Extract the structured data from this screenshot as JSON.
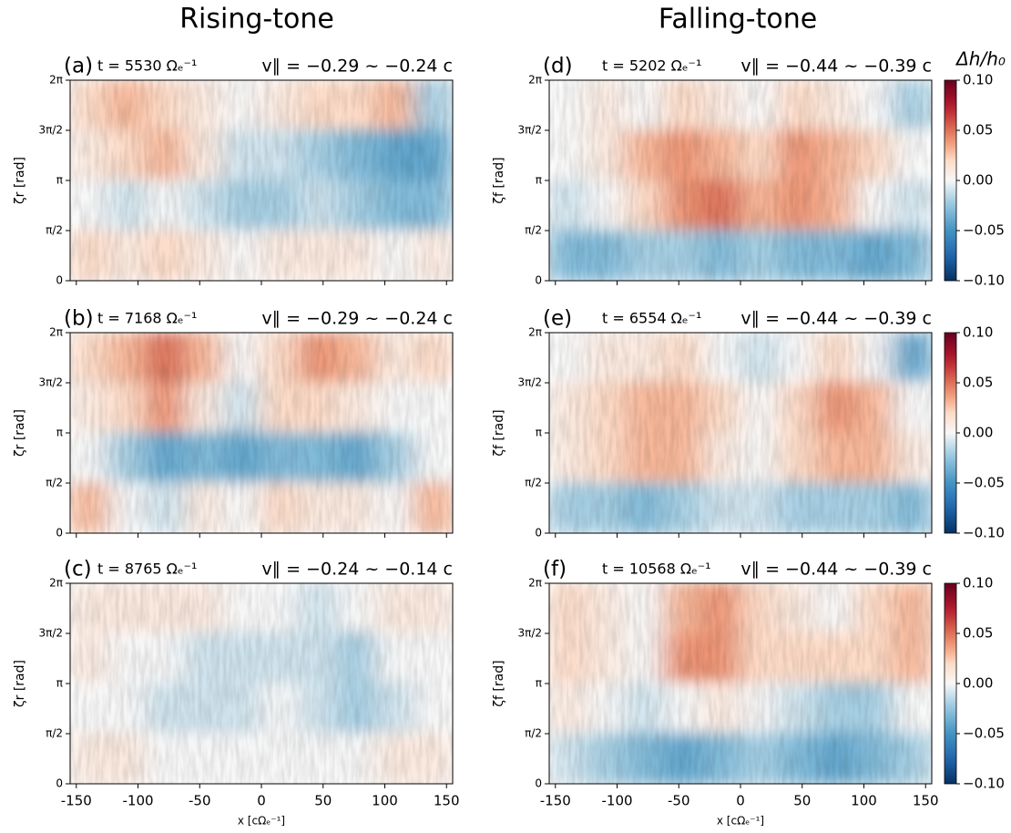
{
  "columns": [
    "Rising-tone",
    "Falling-tone"
  ],
  "chart_data": [
    {
      "type": "heatmap",
      "label": "(a)",
      "time": "t = 5530 Ωₑ⁻¹",
      "vpar": "v∥ = −0.29 ~ −0.24 c",
      "ylabel": "ζr [rad]",
      "xlim": [
        -155,
        155
      ],
      "xticks": [
        -150,
        -100,
        -50,
        0,
        50,
        100,
        150
      ],
      "show_xtick_labels": false,
      "ylim": [
        0,
        6.2832
      ],
      "yticks": [
        0,
        {
          "value": 1.5708,
          "label": "π/2"
        },
        {
          "value": 3.1416,
          "label": "π"
        },
        {
          "value": 4.7124,
          "label": "3π/2"
        },
        {
          "value": 6.2832,
          "label": "2π"
        }
      ],
      "colormap": "RdBu_r",
      "zlim": [
        -0.1,
        0.1
      ],
      "z": [
        [
          0.02,
          0.03,
          0.02,
          0.01,
          0,
          0.01,
          0.02,
          0.02,
          0.03,
          -0.02
        ],
        [
          0.01,
          0.02,
          0.03,
          0.01,
          -0.01,
          -0.01,
          -0.02,
          -0.03,
          -0.04,
          -0.04
        ],
        [
          0,
          -0.01,
          0,
          -0.01,
          -0.02,
          -0.02,
          -0.01,
          -0.02,
          -0.03,
          -0.03
        ],
        [
          0.02,
          0.01,
          0.02,
          0.01,
          0,
          0.01,
          0.01,
          0.01,
          0,
          0.01
        ]
      ]
    },
    {
      "type": "heatmap",
      "label": "(b)",
      "time": "t = 7168 Ωₑ⁻¹",
      "vpar": "v∥ = −0.29 ~ −0.24 c",
      "ylabel": "ζr [rad]",
      "xlim": [
        -155,
        155
      ],
      "xticks": [
        -150,
        -100,
        -50,
        0,
        50,
        100,
        150
      ],
      "show_xtick_labels": false,
      "ylim": [
        0,
        6.2832
      ],
      "yticks": [
        0,
        {
          "value": 1.5708,
          "label": "π/2"
        },
        {
          "value": 3.1416,
          "label": "π"
        },
        {
          "value": 4.7124,
          "label": "3π/2"
        },
        {
          "value": 6.2832,
          "label": "2π"
        }
      ],
      "colormap": "RdBu_r",
      "zlim": [
        -0.1,
        0.1
      ],
      "z": [
        [
          0.02,
          0.03,
          0.05,
          0.03,
          0,
          0.02,
          0.04,
          0.03,
          0.01,
          0.02
        ],
        [
          0.01,
          0.02,
          0.04,
          0.01,
          -0.01,
          0.02,
          0.02,
          0.01,
          0,
          0
        ],
        [
          0,
          -0.02,
          -0.04,
          -0.03,
          -0.04,
          -0.03,
          -0.03,
          -0.04,
          -0.02,
          0
        ],
        [
          0.03,
          0,
          -0.01,
          0.01,
          0,
          0.02,
          0.01,
          0.01,
          0,
          0.03
        ]
      ]
    },
    {
      "type": "heatmap",
      "label": "(c)",
      "time": "t = 8765 Ωₑ⁻¹",
      "vpar": "v∥ = −0.24 ~ −0.14 c",
      "ylabel": "ζr [rad]",
      "xlabel": "x [cΩₑ⁻¹]",
      "xlim": [
        -155,
        155
      ],
      "xticks": [
        -150,
        -100,
        -50,
        0,
        50,
        100,
        150
      ],
      "show_xtick_labels": true,
      "ylim": [
        0,
        6.2832
      ],
      "yticks": [
        0,
        {
          "value": 1.5708,
          "label": "π/2"
        },
        {
          "value": 3.1416,
          "label": "π"
        },
        {
          "value": 4.7124,
          "label": "3π/2"
        },
        {
          "value": 6.2832,
          "label": "2π"
        }
      ],
      "colormap": "RdBu_r",
      "zlim": [
        -0.1,
        0.1
      ],
      "z": [
        [
          0.01,
          0.01,
          0.01,
          0.01,
          0,
          0,
          -0.01,
          0,
          0.01,
          0.01
        ],
        [
          0.01,
          0,
          0,
          -0.01,
          -0.01,
          -0.01,
          -0.01,
          -0.02,
          0,
          0
        ],
        [
          0,
          0,
          -0.01,
          -0.01,
          -0.01,
          0,
          -0.01,
          -0.02,
          -0.01,
          0
        ],
        [
          0.01,
          0.01,
          0,
          0,
          0,
          0,
          0,
          0,
          0.01,
          0.01
        ]
      ]
    },
    {
      "type": "heatmap",
      "label": "(d)",
      "time": "t = 5202 Ωₑ⁻¹",
      "vpar": "v∥ = −0.44 ~ −0.39 c",
      "ylabel": "ζf [rad]",
      "xlim": [
        -155,
        155
      ],
      "xticks": [
        -150,
        -100,
        -50,
        0,
        50,
        100,
        150
      ],
      "show_xtick_labels": false,
      "ylim": [
        0,
        6.2832
      ],
      "yticks": [
        0,
        {
          "value": 1.5708,
          "label": "π/2"
        },
        {
          "value": 3.1416,
          "label": "π"
        },
        {
          "value": 4.7124,
          "label": "3π/2"
        },
        {
          "value": 6.2832,
          "label": "2π"
        }
      ],
      "colormap": "RdBu_r",
      "zlim": [
        -0.1,
        0.1
      ],
      "colorbar": {
        "title": "Δh/h₀",
        "ticks": [
          {
            "value": -0.1,
            "label": "−0.10"
          },
          {
            "value": -0.05,
            "label": "−0.05"
          },
          {
            "value": 0,
            "label": "0.00"
          },
          0.05,
          {
            "value": 0.1,
            "label": "0.10"
          }
        ]
      },
      "z": [
        [
          0,
          0.01,
          0,
          0.02,
          0.01,
          0,
          0.02,
          0.01,
          0,
          -0.02
        ],
        [
          0,
          0.01,
          0.03,
          0.04,
          0.03,
          0.02,
          0.04,
          0.03,
          0.02,
          0
        ],
        [
          -0.01,
          0,
          0.02,
          0.04,
          0.05,
          0.03,
          0.04,
          0.03,
          0,
          -0.01
        ],
        [
          -0.03,
          -0.03,
          -0.02,
          -0.02,
          -0.03,
          -0.02,
          -0.03,
          -0.03,
          -0.04,
          -0.03
        ]
      ]
    },
    {
      "type": "heatmap",
      "label": "(e)",
      "time": "t = 6554 Ωₑ⁻¹",
      "vpar": "v∥ = −0.44 ~ −0.39 c",
      "ylabel": "ζf [rad]",
      "xlim": [
        -155,
        155
      ],
      "xticks": [
        -150,
        -100,
        -50,
        0,
        50,
        100,
        150
      ],
      "show_xtick_labels": false,
      "ylim": [
        0,
        6.2832
      ],
      "yticks": [
        0,
        {
          "value": 1.5708,
          "label": "π/2"
        },
        {
          "value": 3.1416,
          "label": "π"
        },
        {
          "value": 4.7124,
          "label": "3π/2"
        },
        {
          "value": 6.2832,
          "label": "2π"
        }
      ],
      "colormap": "RdBu_r",
      "zlim": [
        -0.1,
        0.1
      ],
      "colorbar": {
        "ticks": [
          {
            "value": -0.1,
            "label": "−0.10"
          },
          {
            "value": -0.05,
            "label": "−0.05"
          },
          {
            "value": 0,
            "label": "0.00"
          },
          0.05,
          {
            "value": 0.1,
            "label": "0.10"
          }
        ]
      },
      "z": [
        [
          0,
          0.01,
          0.01,
          0.02,
          0,
          -0.01,
          0,
          0.02,
          0,
          -0.04
        ],
        [
          0.01,
          0.02,
          0.03,
          0.03,
          0.02,
          0,
          0.02,
          0.04,
          0.03,
          0
        ],
        [
          0.01,
          0.02,
          0.03,
          0.03,
          0.01,
          0,
          0.02,
          0.03,
          0.03,
          0.01
        ],
        [
          -0.02,
          -0.02,
          -0.03,
          -0.02,
          -0.01,
          -0.01,
          -0.02,
          -0.02,
          -0.02,
          -0.03
        ]
      ]
    },
    {
      "type": "heatmap",
      "label": "(f)",
      "time": "t = 10568 Ωₑ⁻¹",
      "vpar": "v∥ = −0.44 ~ −0.39 c",
      "ylabel": "ζf [rad]",
      "xlabel": "x [cΩₑ⁻¹]",
      "xlim": [
        -155,
        155
      ],
      "xticks": [
        -150,
        -100,
        -50,
        0,
        50,
        100,
        150
      ],
      "show_xtick_labels": true,
      "ylim": [
        0,
        6.2832
      ],
      "yticks": [
        0,
        {
          "value": 1.5708,
          "label": "π/2"
        },
        {
          "value": 3.1416,
          "label": "π"
        },
        {
          "value": 4.7124,
          "label": "3π/2"
        },
        {
          "value": 6.2832,
          "label": "2π"
        }
      ],
      "colormap": "RdBu_r",
      "zlim": [
        -0.1,
        0.1
      ],
      "colorbar": {
        "ticks": [
          {
            "value": -0.1,
            "label": "−0.10"
          },
          {
            "value": -0.05,
            "label": "−0.05"
          },
          {
            "value": 0,
            "label": "0.00"
          },
          0.05,
          {
            "value": 0.1,
            "label": "0.10"
          }
        ]
      },
      "z": [
        [
          0.02,
          0.01,
          0,
          0.03,
          0.04,
          0.02,
          0.01,
          0,
          0.02,
          0.03
        ],
        [
          0.02,
          0.01,
          0,
          0.04,
          0.04,
          0.02,
          0.02,
          0.02,
          0.02,
          0.03
        ],
        [
          0.01,
          0,
          -0.01,
          0,
          0.01,
          0,
          -0.01,
          -0.02,
          -0.02,
          0
        ],
        [
          -0.01,
          -0.02,
          -0.03,
          -0.04,
          -0.03,
          -0.02,
          -0.03,
          -0.04,
          -0.03,
          -0.02
        ]
      ]
    }
  ]
}
